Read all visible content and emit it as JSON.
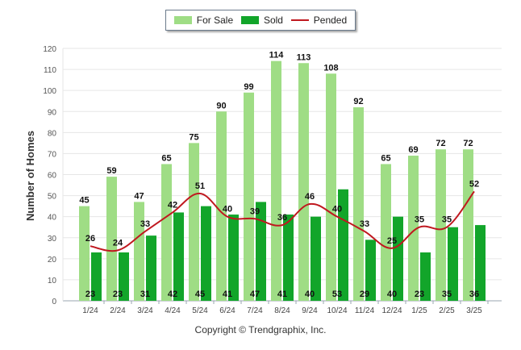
{
  "chart_data": {
    "type": "bar",
    "categories": [
      "1/24",
      "2/24",
      "3/24",
      "4/24",
      "5/24",
      "6/24",
      "7/24",
      "8/24",
      "9/24",
      "10/24",
      "11/24",
      "12/24",
      "1/25",
      "2/25",
      "3/25"
    ],
    "series": [
      {
        "name": "For Sale",
        "type": "bar",
        "color": "#9fdd85",
        "values": [
          45,
          59,
          47,
          65,
          75,
          90,
          99,
          114,
          113,
          108,
          92,
          65,
          69,
          72,
          72
        ]
      },
      {
        "name": "Sold",
        "type": "bar",
        "color": "#12a52a",
        "values": [
          23,
          23,
          31,
          42,
          45,
          41,
          47,
          41,
          40,
          53,
          29,
          40,
          23,
          35,
          36
        ]
      },
      {
        "name": "Pended",
        "type": "line",
        "color": "#c0181f",
        "values": [
          26,
          24,
          33,
          42,
          51,
          40,
          39,
          36,
          46,
          40,
          33,
          25,
          35,
          35,
          52
        ]
      }
    ],
    "ylabel": "Number of Homes",
    "xlabel": "",
    "ylim": [
      0,
      120
    ],
    "yticks": [
      0,
      10,
      20,
      30,
      40,
      50,
      60,
      70,
      80,
      90,
      100,
      110,
      120
    ],
    "grid": true,
    "legend_position": "top-center"
  },
  "footer": {
    "copyright": "Copyright © Trendgraphix, Inc."
  }
}
